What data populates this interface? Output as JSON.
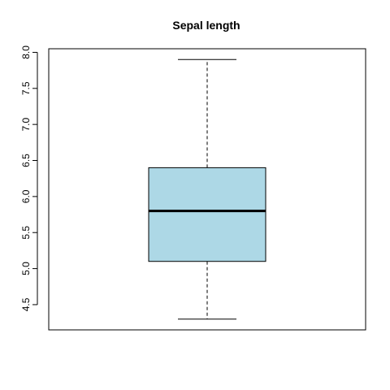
{
  "chart_data": {
    "type": "boxplot",
    "title": "Sepal length",
    "xlabel": "",
    "ylabel": "",
    "ylim": [
      4.15,
      8.05
    ],
    "yticks": [
      "4.5",
      "5.0",
      "5.5",
      "6.0",
      "6.5",
      "7.0",
      "7.5",
      "8.0"
    ],
    "series": [
      {
        "whisker_low": 4.3,
        "q1": 5.1,
        "median": 5.8,
        "q3": 6.4,
        "whisker_high": 7.9
      }
    ],
    "box_color": "#add8e6",
    "outline_color": "#000000"
  }
}
